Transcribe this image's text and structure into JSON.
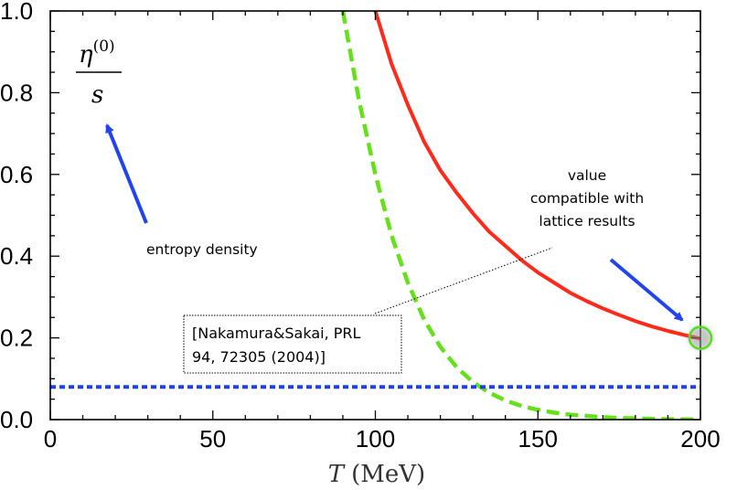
{
  "chart_data": {
    "type": "line",
    "title": "",
    "xlabel": "T (MeV)",
    "xlabel_var": "T",
    "xlabel_unit": "(MeV)",
    "ylabel": "η(0)/s",
    "ylabel_numerator": "η",
    "ylabel_superscript": "(0)",
    "ylabel_denominator": "s",
    "xlim": [
      0,
      200
    ],
    "ylim": [
      0.0,
      1.0
    ],
    "xticks": [
      0,
      50,
      100,
      150,
      200
    ],
    "xtick_labels": [
      "0",
      "50",
      "100",
      "150",
      "200"
    ],
    "yticks": [
      0.0,
      0.2,
      0.4,
      0.6,
      0.8,
      1.0
    ],
    "ytick_labels": [
      "0.0",
      "0.2",
      "0.4",
      "0.6",
      "0.8",
      "1.0"
    ],
    "grid": false,
    "series": [
      {
        "style": "solid",
        "color": "#ff2a1a",
        "x": [
          100,
          105,
          110,
          115,
          120,
          125,
          130,
          135,
          140,
          145,
          150,
          155,
          160,
          165,
          170,
          175,
          180,
          185,
          190,
          195,
          200
        ],
        "y": [
          1.0,
          0.87,
          0.77,
          0.68,
          0.61,
          0.555,
          0.505,
          0.46,
          0.425,
          0.39,
          0.36,
          0.335,
          0.31,
          0.29,
          0.272,
          0.256,
          0.241,
          0.228,
          0.217,
          0.207,
          0.198
        ]
      },
      {
        "style": "dashed",
        "color": "#66e01a",
        "x": [
          90,
          95,
          100,
          105,
          110,
          115,
          120,
          125,
          130,
          135,
          140,
          145,
          150,
          155,
          160,
          165,
          170,
          175,
          180,
          185,
          190,
          195,
          200
        ],
        "y": [
          1.0,
          0.78,
          0.6,
          0.45,
          0.335,
          0.245,
          0.178,
          0.128,
          0.092,
          0.066,
          0.047,
          0.033,
          0.024,
          0.017,
          0.012,
          0.009,
          0.006,
          0.004,
          0.003,
          0.002,
          0.001,
          0.0008,
          0.0005
        ]
      },
      {
        "style": "dotted",
        "color": "#1f3df0",
        "x": [
          0,
          200
        ],
        "y": [
          0.08,
          0.08
        ]
      }
    ],
    "annotations": {
      "entropy": "entropy density",
      "value_line1": "value",
      "value_line2": "compatible with",
      "value_line3": "lattice results",
      "ref_line1": "[Nakamura&Sakai, PRL",
      "ref_line2": "94, 72305 (2004)]"
    },
    "highlight_point": {
      "x": 200,
      "y": 0.2,
      "color": "#55dd22"
    },
    "arrow_color": "#2244ee"
  }
}
